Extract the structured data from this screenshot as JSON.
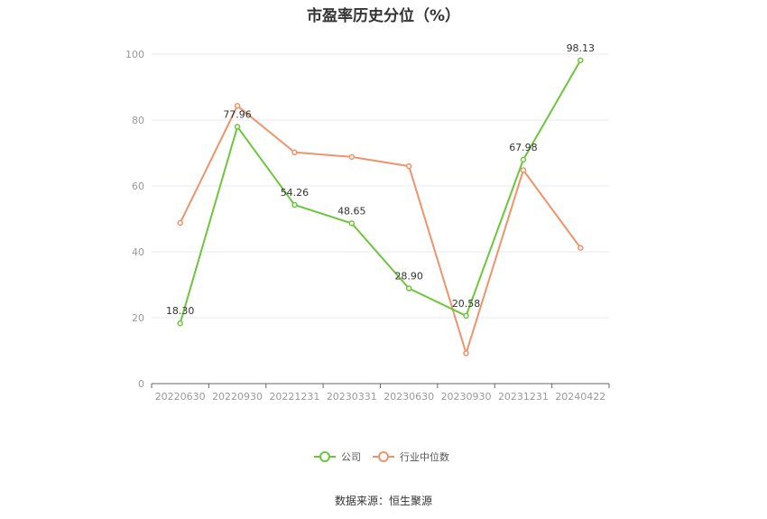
{
  "chart_data": {
    "type": "line",
    "title": "市盈率历史分位（%）",
    "categories": [
      "20220630",
      "20220930",
      "20221231",
      "20230331",
      "20230630",
      "20230930",
      "20231231",
      "20240422"
    ],
    "ylim": [
      0,
      100
    ],
    "yticks": [
      0,
      20,
      40,
      60,
      80,
      100
    ],
    "grid": true,
    "legend_position": "bottom",
    "series": [
      {
        "name": "公司",
        "color": "#6cc63c",
        "values": [
          18.3,
          77.96,
          54.26,
          48.65,
          28.9,
          20.58,
          67.98,
          98.13
        ],
        "labels": [
          "18.30",
          "77.96",
          "54.26",
          "48.65",
          "28.90",
          "20.58",
          "67.98",
          "98.13"
        ]
      },
      {
        "name": "行业中位数",
        "color": "#f0936a",
        "values": [
          48.8,
          84.3,
          70.2,
          68.8,
          66.0,
          9.2,
          64.8,
          41.2
        ]
      }
    ]
  },
  "source": "数据来源：恒生聚源"
}
